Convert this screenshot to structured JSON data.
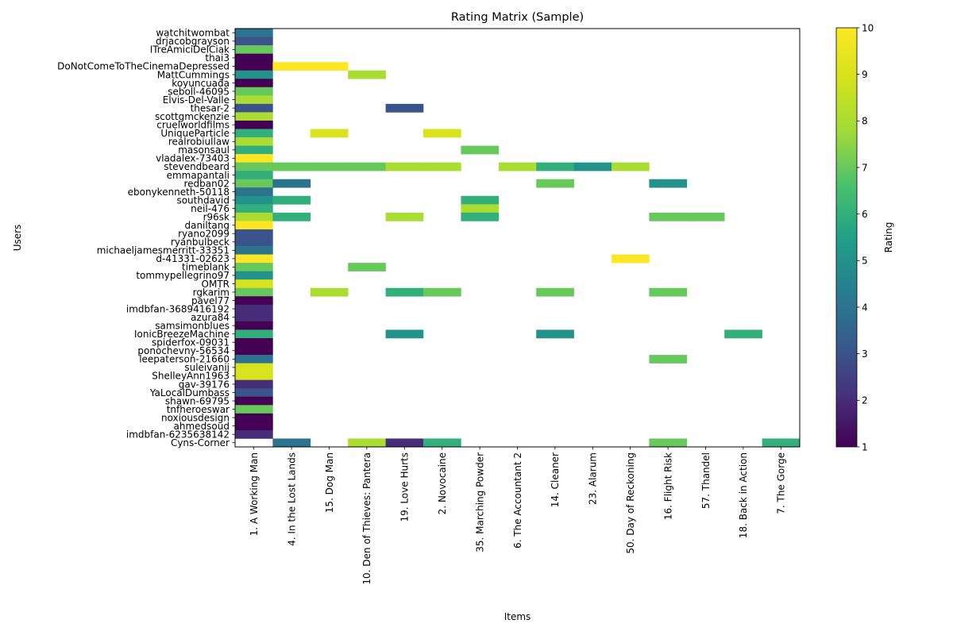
{
  "chart_data": {
    "type": "heatmap",
    "title": "Rating Matrix (Sample)",
    "xlabel": "Items",
    "ylabel": "Users",
    "colorbar_label": "Rating",
    "colormap": "viridis",
    "vmin": 1,
    "vmax": 10,
    "colorbar_ticks": [
      "1",
      "2",
      "3",
      "4",
      "5",
      "6",
      "7",
      "8",
      "9",
      "10"
    ],
    "items": [
      "1. A Working Man",
      "4. In the Lost Lands",
      "15. Dog Man",
      "10. Den of Thieves: Pantera",
      "19. Love Hurts",
      "2. Novocaine",
      "35. Marching Powder",
      "6. The Accountant 2",
      "14. Cleaner",
      "23. Alarum",
      "50. Day of Reckoning",
      "16. Flight Risk",
      "57. Thandel",
      "18. Back in Action",
      "7. The Gorge"
    ],
    "users": [
      "watchitwombat",
      "drjacobgrayson",
      "ITreAmiciDelCiak",
      "thai3",
      "DoNotComeToTheCinemaDepressed",
      "MattCummings",
      "koyuncuada",
      "seboll-46095",
      "Elvis-Del-Valle",
      "thesar-2",
      "scottgmckenzie",
      "cruelworldfilms",
      "UniqueParticle",
      "realrobiullaw",
      "masonsaul",
      "vladalex-73403",
      "stevendbeard",
      "emmapantali",
      "redban02",
      "ebonykenneth-50118",
      "southdavid",
      "neil-476",
      "r96sk",
      "daniltang",
      "ryano2099",
      "ryanbulbeck",
      "michaeljamesmerritt-33351",
      "d-41331-02623",
      "timeblank",
      "tommypellegrino97",
      "OMTR",
      "rgkarim",
      "pavel77",
      "imdbfan-3689416192",
      "azura84",
      "samsimonblues",
      "IonicBreezeMachine",
      "spiderfox-09031",
      "ponochevny-56534",
      "leepaterson-21660",
      "suleivanij",
      "ShelleyAnn1963",
      "gav-39176",
      "YaLocalDumbass",
      "shawn-69795",
      "tnfheroeswar",
      "noxiousdesign",
      "ahmedsoud",
      "imdbfan-6235638142",
      "Cyns-Corner"
    ],
    "cells": [
      [
        0,
        0,
        4
      ],
      [
        1,
        0,
        3
      ],
      [
        2,
        0,
        7
      ],
      [
        3,
        0,
        1
      ],
      [
        4,
        0,
        1
      ],
      [
        4,
        1,
        10
      ],
      [
        4,
        2,
        10
      ],
      [
        5,
        0,
        5
      ],
      [
        5,
        3,
        8
      ],
      [
        6,
        0,
        1
      ],
      [
        7,
        0,
        7
      ],
      [
        8,
        0,
        8
      ],
      [
        9,
        0,
        3
      ],
      [
        9,
        4,
        3
      ],
      [
        10,
        0,
        8
      ],
      [
        11,
        0,
        1
      ],
      [
        12,
        0,
        6
      ],
      [
        12,
        2,
        9
      ],
      [
        12,
        5,
        9
      ],
      [
        13,
        0,
        8
      ],
      [
        14,
        0,
        6
      ],
      [
        14,
        6,
        7
      ],
      [
        15,
        0,
        10
      ],
      [
        16,
        0,
        7
      ],
      [
        16,
        1,
        7
      ],
      [
        16,
        2,
        7
      ],
      [
        16,
        3,
        7
      ],
      [
        16,
        4,
        8
      ],
      [
        16,
        5,
        8
      ],
      [
        16,
        7,
        8
      ],
      [
        16,
        8,
        6
      ],
      [
        16,
        9,
        5
      ],
      [
        16,
        10,
        8
      ],
      [
        17,
        0,
        6
      ],
      [
        18,
        0,
        7
      ],
      [
        18,
        1,
        4
      ],
      [
        18,
        8,
        7
      ],
      [
        18,
        11,
        5
      ],
      [
        19,
        0,
        4
      ],
      [
        20,
        0,
        5
      ],
      [
        20,
        1,
        6
      ],
      [
        20,
        6,
        6
      ],
      [
        21,
        0,
        6
      ],
      [
        21,
        6,
        8
      ],
      [
        22,
        0,
        8
      ],
      [
        22,
        1,
        6
      ],
      [
        22,
        4,
        8
      ],
      [
        22,
        6,
        6
      ],
      [
        22,
        11,
        7
      ],
      [
        22,
        12,
        7
      ],
      [
        23,
        0,
        10
      ],
      [
        24,
        0,
        3
      ],
      [
        25,
        0,
        3
      ],
      [
        26,
        0,
        4
      ],
      [
        27,
        0,
        10
      ],
      [
        27,
        10,
        10
      ],
      [
        28,
        0,
        7
      ],
      [
        28,
        3,
        7
      ],
      [
        29,
        0,
        5
      ],
      [
        30,
        0,
        9
      ],
      [
        31,
        0,
        7
      ],
      [
        31,
        2,
        8
      ],
      [
        31,
        4,
        6
      ],
      [
        31,
        5,
        7
      ],
      [
        31,
        8,
        7
      ],
      [
        31,
        11,
        7
      ],
      [
        32,
        0,
        1
      ],
      [
        33,
        0,
        2
      ],
      [
        34,
        0,
        2
      ],
      [
        35,
        0,
        1
      ],
      [
        36,
        0,
        6
      ],
      [
        36,
        4,
        5
      ],
      [
        36,
        8,
        5
      ],
      [
        36,
        13,
        6
      ],
      [
        37,
        0,
        1
      ],
      [
        38,
        0,
        1
      ],
      [
        39,
        0,
        4
      ],
      [
        39,
        11,
        7
      ],
      [
        40,
        0,
        9
      ],
      [
        41,
        0,
        9
      ],
      [
        42,
        0,
        2
      ],
      [
        43,
        0,
        3
      ],
      [
        44,
        0,
        1
      ],
      [
        45,
        0,
        7
      ],
      [
        46,
        0,
        1
      ],
      [
        47,
        0,
        1
      ],
      [
        48,
        0,
        2
      ],
      [
        49,
        1,
        4
      ],
      [
        49,
        3,
        8
      ],
      [
        49,
        4,
        2
      ],
      [
        49,
        5,
        6
      ],
      [
        49,
        11,
        7
      ],
      [
        49,
        14,
        6
      ]
    ]
  }
}
